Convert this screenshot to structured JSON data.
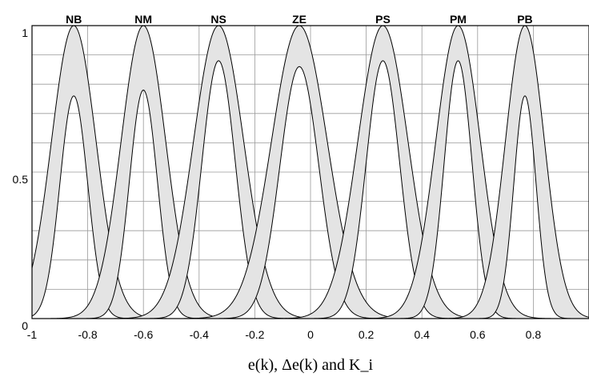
{
  "chart_data": {
    "type": "area",
    "title": "",
    "xlabel": "e(k), Δe(k) and K_i",
    "ylabel": "",
    "xlim": [
      -1,
      1
    ],
    "ylim": [
      0,
      1
    ],
    "grid": true,
    "x_ticks": [
      "-1",
      "-0.8",
      "-0.6",
      "-0.4",
      "-0.2",
      "0",
      "0.2",
      "0.4",
      "0.6",
      "0.8"
    ],
    "x_tick_values": [
      -1,
      -0.8,
      -0.6,
      -0.4,
      -0.2,
      0,
      0.2,
      0.4,
      0.6,
      0.8
    ],
    "y_ticks": [
      "0",
      "0.5",
      "1"
    ],
    "y_tick_values": [
      0,
      0.5,
      1
    ],
    "fill_color": "#e4e4e4",
    "line_color": "#000000",
    "series": [
      {
        "name": "NB",
        "center": -0.85,
        "upper_peak": 1.0,
        "upper_sigma": 0.08,
        "lower_peak": 0.76,
        "lower_sigma": 0.05
      },
      {
        "name": "NM",
        "center": -0.6,
        "upper_peak": 1.0,
        "upper_sigma": 0.08,
        "lower_peak": 0.78,
        "lower_sigma": 0.05
      },
      {
        "name": "NS",
        "center": -0.33,
        "upper_peak": 1.0,
        "upper_sigma": 0.09,
        "lower_peak": 0.88,
        "lower_sigma": 0.06
      },
      {
        "name": "ZE",
        "center": -0.04,
        "upper_peak": 1.0,
        "upper_sigma": 0.1,
        "lower_peak": 0.86,
        "lower_sigma": 0.07
      },
      {
        "name": "PS",
        "center": 0.26,
        "upper_peak": 1.0,
        "upper_sigma": 0.09,
        "lower_peak": 0.88,
        "lower_sigma": 0.06
      },
      {
        "name": "PM",
        "center": 0.53,
        "upper_peak": 1.0,
        "upper_sigma": 0.08,
        "lower_peak": 0.88,
        "lower_sigma": 0.05
      },
      {
        "name": "PB",
        "center": 0.77,
        "upper_peak": 1.0,
        "upper_sigma": 0.07,
        "lower_peak": 0.76,
        "lower_sigma": 0.04
      }
    ]
  }
}
